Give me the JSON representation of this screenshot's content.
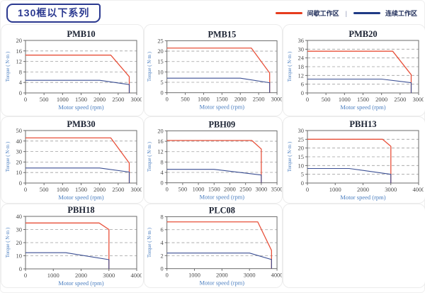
{
  "header": {
    "title": "130框以下系列",
    "legend_separator": "|",
    "legend": [
      {
        "label": "间歇工作区",
        "color": "#e63c1e"
      },
      {
        "label": "连续工作区",
        "color": "#1f3a85"
      }
    ]
  },
  "colors": {
    "intermittent_line": "#e8503a",
    "continuous_line": "#3b4f93",
    "grid_line": "#a0a0a0",
    "plot_border": "#6b6b6b",
    "accent_navy": "#2b3990"
  },
  "chart_data": [
    {
      "type": "line",
      "title": "PMB10",
      "xlabel": "Motor speed (rpm)",
      "ylabel": "Torque ( N·m )",
      "xlim": [
        0,
        3000
      ],
      "xstep": 500,
      "ylim": [
        0,
        20
      ],
      "ystep": 4,
      "grid": "dashed-horizontal",
      "legend_position": "none",
      "series": [
        {
          "name": "间歇工作区",
          "color": "#e8503a",
          "points": [
            [
              0,
              14.4
            ],
            [
              2300,
              14.4
            ],
            [
              2800,
              6.2
            ],
            [
              2800,
              0
            ]
          ]
        },
        {
          "name": "连续工作区",
          "color": "#3b4f93",
          "points": [
            [
              0,
              4.8
            ],
            [
              2000,
              4.8
            ],
            [
              2800,
              3.2
            ],
            [
              2800,
              0
            ]
          ]
        }
      ]
    },
    {
      "type": "line",
      "title": "PMB15",
      "xlabel": "Motor speed (rpm)",
      "ylabel": "Torque ( N·m )",
      "xlim": [
        0,
        3000
      ],
      "xstep": 500,
      "ylim": [
        0,
        25
      ],
      "ystep": 5,
      "grid": "dashed-horizontal",
      "legend_position": "none",
      "series": [
        {
          "name": "间歇工作区",
          "color": "#e8503a",
          "points": [
            [
              0,
              21.5
            ],
            [
              2300,
              21.5
            ],
            [
              2800,
              9.5
            ],
            [
              2800,
              0
            ]
          ]
        },
        {
          "name": "连续工作区",
          "color": "#3b4f93",
          "points": [
            [
              0,
              7
            ],
            [
              2000,
              7
            ],
            [
              2800,
              4.8
            ],
            [
              2800,
              0
            ]
          ]
        }
      ]
    },
    {
      "type": "line",
      "title": "PMB20",
      "xlabel": "Motor speed (rpm)",
      "ylabel": "Torque ( N·m )",
      "xlim": [
        0,
        3000
      ],
      "xstep": 500,
      "ylim": [
        0,
        36
      ],
      "ystep": 6,
      "grid": "dashed-horizontal",
      "legend_position": "none",
      "series": [
        {
          "name": "间歇工作区",
          "color": "#e8503a",
          "points": [
            [
              0,
              28.6
            ],
            [
              2300,
              28.6
            ],
            [
              2800,
              12.5
            ],
            [
              2800,
              0
            ]
          ]
        },
        {
          "name": "连续工作区",
          "color": "#3b4f93",
          "points": [
            [
              0,
              9.5
            ],
            [
              2000,
              9.5
            ],
            [
              2800,
              7
            ],
            [
              2800,
              0
            ]
          ]
        }
      ]
    },
    {
      "type": "line",
      "title": "PMB30",
      "xlabel": "Motor speed (rpm)",
      "ylabel": "Torque ( N·m )",
      "xlim": [
        0,
        3000
      ],
      "xstep": 500,
      "ylim": [
        0,
        50
      ],
      "ystep": 10,
      "grid": "dashed-horizontal",
      "legend_position": "none",
      "series": [
        {
          "name": "间歇工作区",
          "color": "#e8503a",
          "points": [
            [
              0,
              43
            ],
            [
              2300,
              43
            ],
            [
              2800,
              19
            ],
            [
              2800,
              0
            ]
          ]
        },
        {
          "name": "连续工作区",
          "color": "#3b4f93",
          "points": [
            [
              0,
              14.3
            ],
            [
              2000,
              14.3
            ],
            [
              2800,
              10.5
            ],
            [
              2800,
              0
            ]
          ]
        }
      ]
    },
    {
      "type": "line",
      "title": "PBH09",
      "xlabel": "Motor speed (rpm)",
      "ylabel": "Torque ( N·m )",
      "xlim": [
        0,
        3500
      ],
      "xstep": 500,
      "ylim": [
        0,
        20
      ],
      "ystep": 4,
      "grid": "dashed-horizontal",
      "legend_position": "none",
      "series": [
        {
          "name": "间歇工作区",
          "color": "#e8503a",
          "points": [
            [
              0,
              16.3
            ],
            [
              2700,
              16.3
            ],
            [
              3000,
              13
            ],
            [
              3000,
              0
            ]
          ]
        },
        {
          "name": "连续工作区",
          "color": "#3b4f93",
          "points": [
            [
              0,
              5.2
            ],
            [
              1500,
              5.2
            ],
            [
              3000,
              3
            ],
            [
              3000,
              0
            ]
          ]
        }
      ]
    },
    {
      "type": "line",
      "title": "PBH13",
      "xlabel": "Motor speed (rpm)",
      "ylabel": "Torque ( N·m )",
      "xlim": [
        0,
        4000
      ],
      "xstep": 1000,
      "ylim": [
        0,
        30
      ],
      "ystep": 5,
      "grid": "dashed-horizontal",
      "legend_position": "none",
      "series": [
        {
          "name": "间歇工作区",
          "color": "#e8503a",
          "points": [
            [
              0,
              25
            ],
            [
              2700,
              25
            ],
            [
              3000,
              21
            ],
            [
              3000,
              0
            ]
          ]
        },
        {
          "name": "连续工作区",
          "color": "#3b4f93",
          "points": [
            [
              0,
              8.3
            ],
            [
              1500,
              8.3
            ],
            [
              3000,
              5
            ],
            [
              3000,
              0
            ]
          ]
        }
      ]
    },
    {
      "type": "line",
      "title": "PBH18",
      "xlabel": "Motor speed (rpm)",
      "ylabel": "Torque ( N·m )",
      "xlim": [
        0,
        4000
      ],
      "xstep": 1000,
      "ylim": [
        0,
        40
      ],
      "ystep": 10,
      "grid": "dashed-horizontal",
      "legend_position": "none",
      "series": [
        {
          "name": "间歇工作区",
          "color": "#e8503a",
          "points": [
            [
              0,
              35
            ],
            [
              2650,
              35
            ],
            [
              3000,
              30
            ],
            [
              3000,
              0
            ]
          ]
        },
        {
          "name": "连续工作区",
          "color": "#3b4f93",
          "points": [
            [
              0,
              12.3
            ],
            [
              1450,
              12.3
            ],
            [
              3000,
              7
            ],
            [
              3000,
              0
            ]
          ]
        }
      ]
    },
    {
      "type": "line",
      "title": "PLC08",
      "xlabel": "Motor speed (rpm)",
      "ylabel": "Torque ( N·m )",
      "xlim": [
        0,
        4000
      ],
      "xstep": 1000,
      "ylim": [
        0,
        8
      ],
      "ystep": 2,
      "grid": "dashed-horizontal",
      "legend_position": "none",
      "series": [
        {
          "name": "间歇工作区",
          "color": "#e8503a",
          "points": [
            [
              0,
              7.2
            ],
            [
              3300,
              7.2
            ],
            [
              3800,
              2.8
            ],
            [
              3800,
              0
            ]
          ]
        },
        {
          "name": "连续工作区",
          "color": "#3b4f93",
          "points": [
            [
              0,
              2.4
            ],
            [
              3000,
              2.4
            ],
            [
              3800,
              1.4
            ],
            [
              3800,
              0
            ]
          ]
        }
      ]
    }
  ]
}
